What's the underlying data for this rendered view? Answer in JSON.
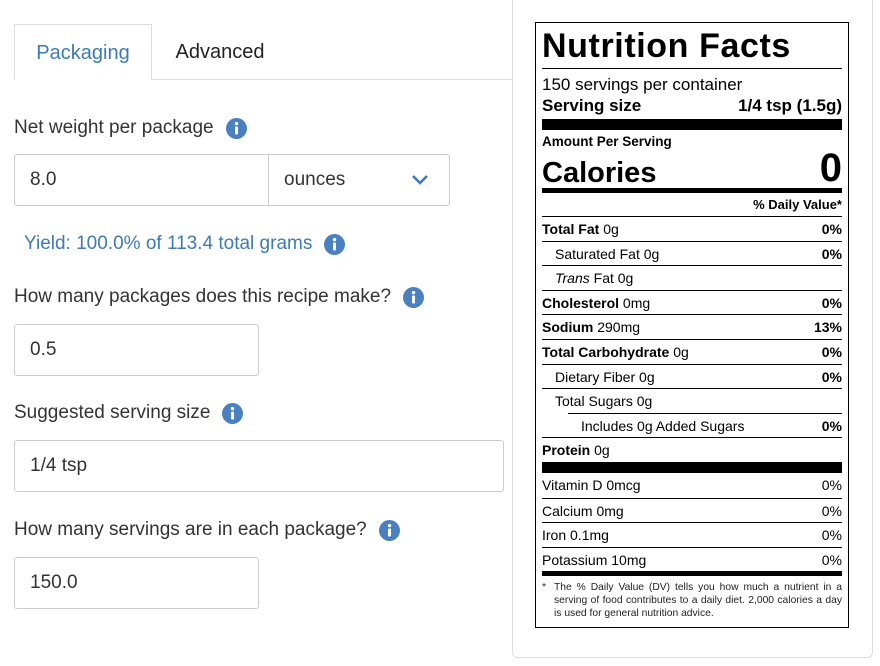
{
  "tabs": [
    "Packaging",
    "Advanced"
  ],
  "form": {
    "net_weight": {
      "label": "Net weight per package",
      "value": "8.0",
      "unit": "ounces"
    },
    "yield": "Yield: 100.0% of 113.4 total grams",
    "packages": {
      "label": "How many packages does this recipe make?",
      "value": "0.5"
    },
    "serving_size": {
      "label": "Suggested serving size",
      "value": "1/4 tsp"
    },
    "servings": {
      "label": "How many servings are in each package?",
      "value": "150.0"
    }
  },
  "nutrition_label": {
    "title": "Nutrition Facts",
    "servings_per_container": "150 servings per container",
    "serving_size_label": "Serving size",
    "serving_size": "1/4 tsp (1.5g)",
    "amount_per_serving": "Amount Per Serving",
    "calories_label": "Calories",
    "calories": "0",
    "daily_value_header": "% Daily Value*",
    "nutrients": [
      {
        "name": "Total Fat",
        "amount": "0g",
        "dv": "0%"
      },
      {
        "name": "Saturated Fat",
        "amount": "0g",
        "dv": "0%"
      },
      {
        "prefix": "Trans",
        "name": "Fat",
        "amount": "0g"
      },
      {
        "name": "Cholesterol",
        "amount": "0mg",
        "dv": "0%"
      },
      {
        "name": "Sodium",
        "amount": "290mg",
        "dv": "13%"
      },
      {
        "name": "Total Carbohydrate",
        "amount": "0g",
        "dv": "0%"
      },
      {
        "name": "Dietary Fiber",
        "amount": "0g",
        "dv": "0%"
      },
      {
        "name": "Total Sugars",
        "amount": "0g"
      },
      {
        "text": "Includes 0g Added Sugars",
        "dv": "0%"
      },
      {
        "name": "Protein",
        "amount": "0g"
      }
    ],
    "vitamins": [
      {
        "name": "Vitamin D",
        "amount": "0mcg",
        "dv": "0%"
      },
      {
        "name": "Calcium",
        "amount": "0mg",
        "dv": "0%"
      },
      {
        "name": "Iron",
        "amount": "0.1mg",
        "dv": "0%"
      },
      {
        "name": "Potassium",
        "amount": "10mg",
        "dv": "0%"
      }
    ],
    "footnote_mark": "*",
    "footnote": "The % Daily Value (DV) tells you how much a nutrient in a serving of food contributes to a daily diet. 2,000 calories a day is used for general nutrition advice."
  }
}
